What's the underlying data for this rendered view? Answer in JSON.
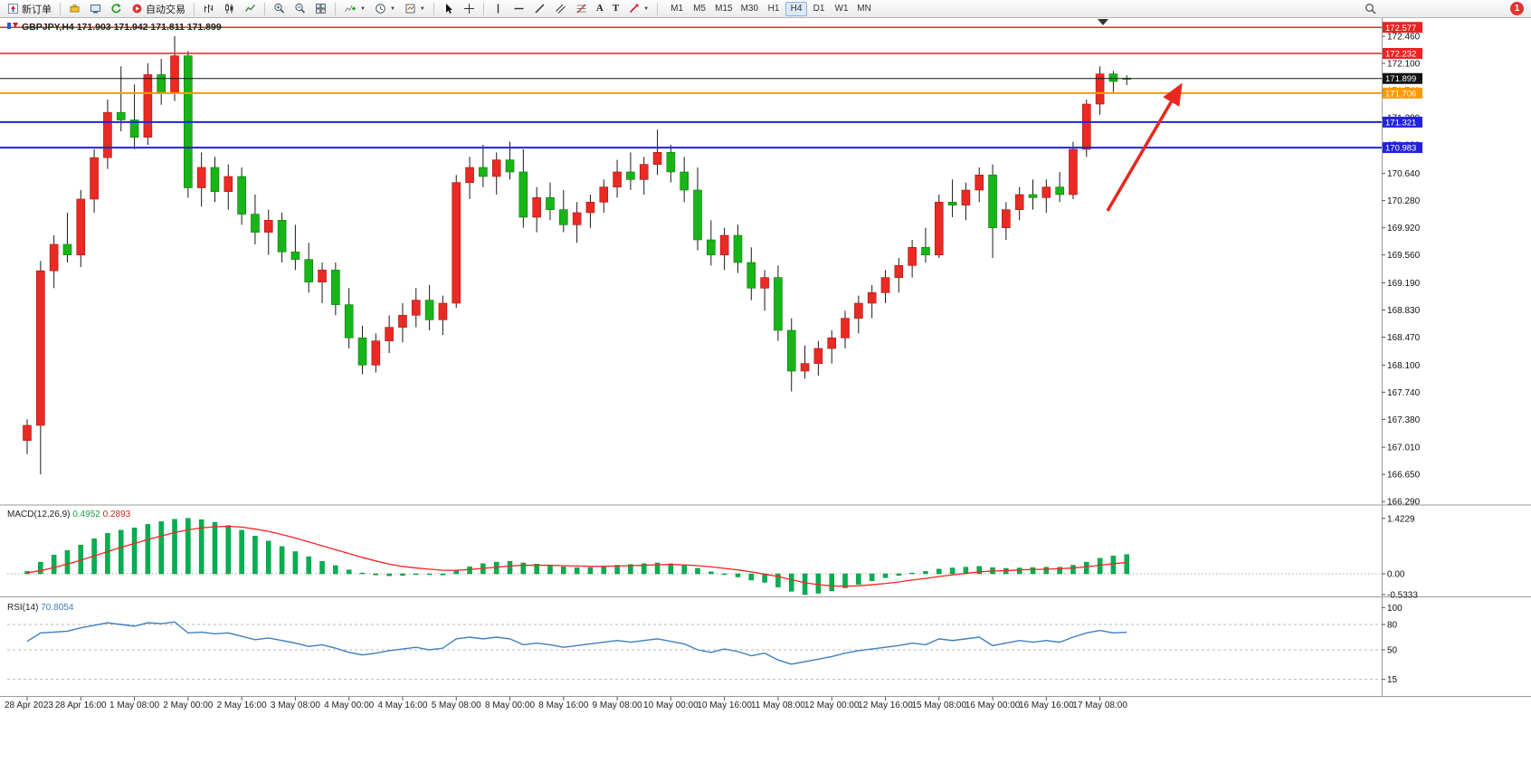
{
  "toolbar": {
    "new_order_label": "新订单",
    "autotrading_label": "自动交易",
    "text_tool_glyph": "A",
    "label_tool_glyph": "T",
    "timeframes": [
      "M1",
      "M5",
      "M15",
      "M30",
      "H1",
      "H4",
      "D1",
      "W1",
      "MN"
    ],
    "active_timeframe": "H4",
    "notification_count": "1"
  },
  "chart": {
    "symbol_title": "GBPJPY,H4",
    "ohlc_text": "171.903 171.942 171.811 171.899"
  },
  "chart_data": {
    "type": "candlestick",
    "symbol": "GBPJPY",
    "timeframe": "H4",
    "open": "171.903",
    "high": "171.942",
    "low": "171.811",
    "close": "171.899",
    "up_means": "red (bullish)",
    "down_means": "green (bearish)",
    "y_axis_labels": [
      "172.460",
      "172.100",
      "171.740",
      "171.380",
      "171.020",
      "170.640",
      "170.280",
      "169.920",
      "169.560",
      "169.190",
      "168.830",
      "168.470",
      "168.100",
      "167.740",
      "167.380",
      "167.010",
      "166.650",
      "166.290"
    ],
    "x_labels": [
      "28 Apr 2023",
      "28 Apr 16:00",
      "1 May 08:00",
      "2 May 00:00",
      "2 May 16:00",
      "3 May 08:00",
      "4 May 00:00",
      "4 May 16:00",
      "5 May 08:00",
      "8 May 00:00",
      "8 May 16:00",
      "9 May 08:00",
      "10 May 00:00",
      "10 May 16:00",
      "11 May 08:00",
      "12 May 00:00",
      "12 May 16:00",
      "15 May 08:00",
      "16 May 00:00",
      "16 May 16:00",
      "17 May 08:00"
    ],
    "label_every_n_candles": 4,
    "candles": [
      [
        167.1,
        167.38,
        166.92,
        167.3
      ],
      [
        167.3,
        169.48,
        166.65,
        169.35
      ],
      [
        169.35,
        169.82,
        169.12,
        169.7
      ],
      [
        169.7,
        170.12,
        169.46,
        169.56
      ],
      [
        169.56,
        170.42,
        169.4,
        170.3
      ],
      [
        170.3,
        170.96,
        170.12,
        170.85
      ],
      [
        170.85,
        171.62,
        170.7,
        171.45
      ],
      [
        171.45,
        172.06,
        171.2,
        171.35
      ],
      [
        171.35,
        171.82,
        170.96,
        171.12
      ],
      [
        171.12,
        172.1,
        171.02,
        171.95
      ],
      [
        171.95,
        172.16,
        171.55,
        171.7
      ],
      [
        171.7,
        172.46,
        171.6,
        172.2
      ],
      [
        172.2,
        172.26,
        170.32,
        170.45
      ],
      [
        170.45,
        170.92,
        170.2,
        170.72
      ],
      [
        170.72,
        170.86,
        170.26,
        170.4
      ],
      [
        170.4,
        170.76,
        170.16,
        170.6
      ],
      [
        170.6,
        170.72,
        169.96,
        170.1
      ],
      [
        170.1,
        170.36,
        169.7,
        169.86
      ],
      [
        169.86,
        170.16,
        169.56,
        170.02
      ],
      [
        170.02,
        170.12,
        169.46,
        169.6
      ],
      [
        169.6,
        169.96,
        169.36,
        169.5
      ],
      [
        169.5,
        169.72,
        169.06,
        169.2
      ],
      [
        169.2,
        169.46,
        168.92,
        169.36
      ],
      [
        169.36,
        169.46,
        168.76,
        168.9
      ],
      [
        168.9,
        169.12,
        168.32,
        168.46
      ],
      [
        168.46,
        168.62,
        167.98,
        168.1
      ],
      [
        168.1,
        168.52,
        168.0,
        168.42
      ],
      [
        168.42,
        168.76,
        168.26,
        168.6
      ],
      [
        168.6,
        168.92,
        168.4,
        168.76
      ],
      [
        168.76,
        169.12,
        168.6,
        168.96
      ],
      [
        168.96,
        169.16,
        168.56,
        168.7
      ],
      [
        168.7,
        169.02,
        168.5,
        168.92
      ],
      [
        168.92,
        170.62,
        168.86,
        170.52
      ],
      [
        170.52,
        170.86,
        170.3,
        170.72
      ],
      [
        170.72,
        171.02,
        170.46,
        170.6
      ],
      [
        170.6,
        170.92,
        170.36,
        170.82
      ],
      [
        170.82,
        171.06,
        170.56,
        170.66
      ],
      [
        170.66,
        170.96,
        169.92,
        170.06
      ],
      [
        170.06,
        170.46,
        169.86,
        170.32
      ],
      [
        170.32,
        170.52,
        170.02,
        170.16
      ],
      [
        170.16,
        170.42,
        169.86,
        169.96
      ],
      [
        169.96,
        170.26,
        169.72,
        170.12
      ],
      [
        170.12,
        170.36,
        169.92,
        170.26
      ],
      [
        170.26,
        170.56,
        170.12,
        170.46
      ],
      [
        170.46,
        170.82,
        170.32,
        170.66
      ],
      [
        170.66,
        170.92,
        170.42,
        170.56
      ],
      [
        170.56,
        170.86,
        170.36,
        170.76
      ],
      [
        170.76,
        171.22,
        170.62,
        170.92
      ],
      [
        170.92,
        171.02,
        170.52,
        170.66
      ],
      [
        170.66,
        170.86,
        170.26,
        170.42
      ],
      [
        170.42,
        170.72,
        169.62,
        169.76
      ],
      [
        169.76,
        170.02,
        169.42,
        169.56
      ],
      [
        169.56,
        169.92,
        169.36,
        169.82
      ],
      [
        169.82,
        169.96,
        169.32,
        169.46
      ],
      [
        169.46,
        169.66,
        168.96,
        169.12
      ],
      [
        169.12,
        169.36,
        168.82,
        169.26
      ],
      [
        169.26,
        169.42,
        168.42,
        168.56
      ],
      [
        168.56,
        168.72,
        167.75,
        168.02
      ],
      [
        168.02,
        168.36,
        167.92,
        168.12
      ],
      [
        168.12,
        168.42,
        167.96,
        168.32
      ],
      [
        168.32,
        168.56,
        168.12,
        168.46
      ],
      [
        168.46,
        168.82,
        168.32,
        168.72
      ],
      [
        168.72,
        169.02,
        168.52,
        168.92
      ],
      [
        168.92,
        169.16,
        168.72,
        169.06
      ],
      [
        169.06,
        169.36,
        168.92,
        169.26
      ],
      [
        169.26,
        169.52,
        169.06,
        169.42
      ],
      [
        169.42,
        169.76,
        169.26,
        169.66
      ],
      [
        169.66,
        169.92,
        169.46,
        169.56
      ],
      [
        169.56,
        170.36,
        169.52,
        170.26
      ],
      [
        170.26,
        170.56,
        170.06,
        170.22
      ],
      [
        170.22,
        170.52,
        170.02,
        170.42
      ],
      [
        170.42,
        170.72,
        170.26,
        170.62
      ],
      [
        170.62,
        170.76,
        169.52,
        169.92
      ],
      [
        169.92,
        170.26,
        169.76,
        170.16
      ],
      [
        170.16,
        170.46,
        170.02,
        170.36
      ],
      [
        170.36,
        170.56,
        170.16,
        170.32
      ],
      [
        170.32,
        170.56,
        170.12,
        170.46
      ],
      [
        170.46,
        170.66,
        170.26,
        170.36
      ],
      [
        170.36,
        171.06,
        170.3,
        170.96
      ],
      [
        170.96,
        171.62,
        170.86,
        171.56
      ],
      [
        171.56,
        172.06,
        171.42,
        171.96
      ],
      [
        171.96,
        172.0,
        171.72,
        171.86
      ],
      [
        171.903,
        171.942,
        171.811,
        171.899
      ]
    ],
    "levels": [
      {
        "price": 172.577,
        "label": "172.577",
        "color": "#ee2222",
        "width": 1.4
      },
      {
        "price": 172.232,
        "label": "172.232",
        "color": "#ee2222",
        "width": 1.4
      },
      {
        "price": 171.899,
        "label": "171.899",
        "color": "#111111",
        "width": 1
      },
      {
        "price": 171.706,
        "label": "171.706",
        "color": "#ff9900",
        "width": 2
      },
      {
        "price": 171.321,
        "label": "171.321",
        "color": "#2222dd",
        "width": 2
      },
      {
        "price": 170.983,
        "label": "170.983",
        "color": "#2222dd",
        "width": 2
      }
    ],
    "annotations": [
      {
        "type": "arrow",
        "color": "#e8281e",
        "from": [
          1224,
          233
        ],
        "to": [
          1304,
          96
        ]
      }
    ],
    "colors": {
      "up": "#ea2a24",
      "down": "#17b517",
      "wick": "#1a1a1a",
      "macd_hist": "#00b050",
      "macd_signal": "#ff2222",
      "rsi_line": "#3e7fc1"
    },
    "indicators": [
      {
        "name": "MACD",
        "title": "MACD(12,26,9)",
        "value_main": "0.4952",
        "value_signal": "0.2893",
        "scale_labels": [
          "1.4229",
          "0.00",
          "-0.5333"
        ],
        "scale_values": [
          1.4229,
          0,
          -0.5333
        ],
        "histogram": [
          0.06,
          0.3,
          0.48,
          0.6,
          0.74,
          0.9,
          1.04,
          1.12,
          1.18,
          1.27,
          1.34,
          1.4,
          1.4229,
          1.39,
          1.32,
          1.24,
          1.12,
          0.97,
          0.84,
          0.7,
          0.57,
          0.44,
          0.32,
          0.21,
          0.1,
          0.02,
          -0.03,
          -0.05,
          -0.04,
          -0.02,
          -0.02,
          -0.03,
          0.08,
          0.18,
          0.26,
          0.3,
          0.32,
          0.28,
          0.25,
          0.22,
          0.18,
          0.16,
          0.16,
          0.18,
          0.22,
          0.24,
          0.26,
          0.28,
          0.26,
          0.22,
          0.14,
          0.05,
          -0.02,
          -0.08,
          -0.16,
          -0.22,
          -0.34,
          -0.45,
          -0.5333,
          -0.5,
          -0.44,
          -0.36,
          -0.27,
          -0.18,
          -0.1,
          -0.04,
          0.02,
          0.06,
          0.12,
          0.15,
          0.17,
          0.19,
          0.16,
          0.14,
          0.15,
          0.16,
          0.17,
          0.17,
          0.22,
          0.3,
          0.4,
          0.46,
          0.4952
        ],
        "signal": [
          0.03,
          0.08,
          0.16,
          0.25,
          0.35,
          0.46,
          0.57,
          0.68,
          0.78,
          0.88,
          0.97,
          1.06,
          1.13,
          1.18,
          1.21,
          1.22,
          1.2,
          1.15,
          1.09,
          1.01,
          0.92,
          0.82,
          0.72,
          0.62,
          0.52,
          0.42,
          0.33,
          0.25,
          0.19,
          0.15,
          0.12,
          0.09,
          0.09,
          0.11,
          0.14,
          0.17,
          0.2,
          0.22,
          0.22,
          0.22,
          0.21,
          0.2,
          0.19,
          0.19,
          0.2,
          0.21,
          0.22,
          0.23,
          0.24,
          0.23,
          0.21,
          0.18,
          0.14,
          0.1,
          0.05,
          -0.01,
          -0.07,
          -0.15,
          -0.23,
          -0.28,
          -0.31,
          -0.32,
          -0.31,
          -0.28,
          -0.25,
          -0.21,
          -0.16,
          -0.12,
          -0.07,
          -0.03,
          0.01,
          0.05,
          0.07,
          0.08,
          0.1,
          0.11,
          0.12,
          0.13,
          0.15,
          0.18,
          0.22,
          0.26,
          0.2893
        ]
      },
      {
        "name": "RSI",
        "title": "RSI(14)",
        "value": "70.8054",
        "scale_labels": [
          "100",
          "80",
          "50",
          "15"
        ],
        "scale_values": [
          100,
          80,
          50,
          15
        ],
        "levels": [
          80,
          50,
          15
        ],
        "series": [
          60,
          70,
          71,
          72,
          76,
          79,
          82,
          80,
          78,
          82,
          81,
          83,
          70,
          71,
          69,
          70,
          66,
          62,
          64,
          61,
          58,
          54,
          56,
          52,
          47,
          44,
          46,
          49,
          51,
          53,
          50,
          52,
          63,
          65,
          63,
          65,
          63,
          56,
          58,
          56,
          53,
          55,
          57,
          59,
          61,
          59,
          61,
          63,
          60,
          57,
          50,
          47,
          51,
          48,
          43,
          46,
          38,
          33,
          36,
          39,
          42,
          46,
          49,
          51,
          53,
          55,
          58,
          56,
          63,
          61,
          63,
          65,
          55,
          58,
          61,
          59,
          61,
          59,
          65,
          70,
          73,
          70,
          70.8054
        ]
      }
    ]
  }
}
